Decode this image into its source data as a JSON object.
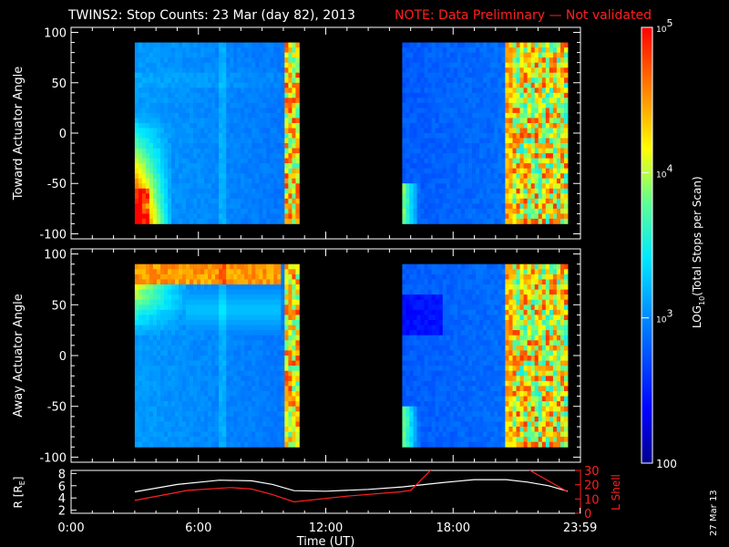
{
  "title": {
    "main": "TWINS2: Stop Counts: 23 Mar (day  82), 2013",
    "note": "NOTE: Data Preliminary — Not validated"
  },
  "stamp": "27 Mar 13",
  "colors": {
    "note": "#ff2020",
    "lshell": "#ff2020",
    "radius": "#ffffff"
  },
  "chart_data": [
    {
      "type": "heatmap",
      "name": "toward",
      "ylabel": "Toward Actuator Angle",
      "ylim": [
        -105,
        105
      ],
      "yticks": [
        100,
        50,
        0,
        -50,
        -100
      ],
      "xlim": [
        0,
        24
      ],
      "time_blocks": [
        [
          3.0,
          10.75
        ],
        [
          15.6,
          23.4
        ]
      ],
      "angle_range": [
        -90,
        90
      ]
    },
    {
      "type": "heatmap",
      "name": "away",
      "ylabel": "Away Actuator Angle",
      "ylim": [
        -105,
        105
      ],
      "yticks": [
        100,
        50,
        0,
        -50,
        -100
      ],
      "xlim": [
        0,
        24
      ],
      "time_blocks": [
        [
          3.0,
          10.75
        ],
        [
          15.6,
          23.4
        ]
      ],
      "angle_range": [
        -90,
        90
      ]
    },
    {
      "type": "line",
      "name": "orbit",
      "xlabel": "Time (UT)",
      "xlim": [
        0,
        24
      ],
      "xticks": [
        "0:00",
        "6:00",
        "12:00",
        "18:00",
        "23:59"
      ],
      "ylabel_left": "R [R",
      "ylabel_left_sub": "E",
      "ylabel_left_end": "]",
      "ylim_left": [
        1.5,
        8.5
      ],
      "yticks_left": [
        8,
        6,
        4,
        2
      ],
      "ylabel_right": "L Shell",
      "ylim_right": [
        0,
        30
      ],
      "yticks_right": [
        30,
        20,
        10,
        0
      ],
      "series": [
        {
          "axis": "left",
          "x": [
            3.0,
            5.0,
            7.0,
            8.5,
            9.5,
            10.5,
            12.0,
            14.0,
            15.6,
            17.5,
            19.0,
            20.5,
            21.5,
            22.5,
            23.4
          ],
          "y": [
            5.0,
            6.2,
            6.9,
            6.8,
            6.2,
            5.2,
            5.1,
            5.4,
            5.8,
            6.5,
            7.0,
            7.0,
            6.6,
            6.0,
            5.1
          ]
        },
        {
          "axis": "right",
          "x": [
            3.0,
            5.5,
            7.5,
            8.5,
            9.5,
            10.5,
            13.0,
            15.5,
            16.0,
            17.0,
            21.5,
            23.4
          ],
          "y": [
            9,
            16,
            18,
            17,
            13,
            8,
            12,
            15,
            16,
            31,
            31,
            15
          ]
        }
      ]
    },
    {
      "type": "colorbar",
      "label": "LOG",
      "label_sub": "10",
      "label_end": "(Total Stops per Scan)",
      "scale": "log",
      "range": [
        100,
        100000
      ],
      "ticks": [
        {
          "value": 100000,
          "base": "10",
          "exp": "5"
        },
        {
          "value": 10000,
          "base": "10",
          "exp": "4"
        },
        {
          "value": 1000,
          "base": "10",
          "exp": "3"
        },
        {
          "value": 100,
          "base": "100",
          "exp": ""
        }
      ]
    }
  ]
}
